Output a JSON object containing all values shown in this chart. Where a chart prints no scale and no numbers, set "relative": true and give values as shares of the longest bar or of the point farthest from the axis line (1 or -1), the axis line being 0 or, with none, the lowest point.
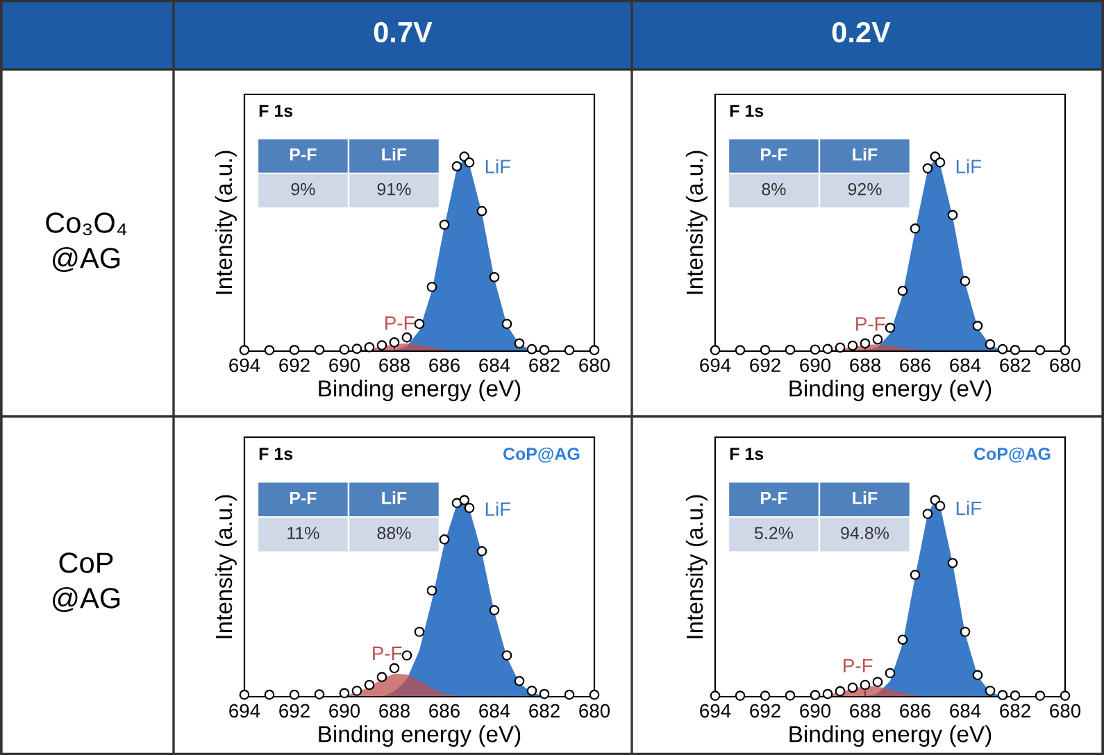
{
  "chart_data": [
    {
      "type": "area",
      "relative": true,
      "xlabel": "Binding energy (eV)",
      "ylabel": "Intensity (a.u.)",
      "xlim": [
        694,
        680
      ],
      "xticks": [
        694,
        692,
        690,
        688,
        686,
        684,
        682,
        680
      ],
      "tick_labels": "x",
      "grid": false,
      "annotations": [
        "F 1s",
        "P-F",
        "LiF",
        "9%",
        "91%"
      ],
      "x": [
        694,
        693,
        692,
        691,
        690,
        689.5,
        689,
        688.5,
        688,
        687.5,
        687,
        686.5,
        686,
        685.5,
        685.2,
        685,
        684.5,
        684,
        683.5,
        683,
        682.5,
        682,
        681,
        680
      ],
      "series": [
        {
          "type": "area",
          "name": "P-F",
          "color": "#c0504d",
          "values": [
            0,
            0,
            0,
            0,
            0.001,
            0.004,
            0.012,
            0.024,
            0.036,
            0.04,
            0.032,
            0.019,
            0.008,
            0.003,
            0.001,
            0,
            0,
            0,
            0,
            0,
            0,
            0,
            0,
            0
          ]
        },
        {
          "type": "area",
          "name": "LiF",
          "color": "#3b7ac6",
          "values": [
            0,
            0,
            0,
            0,
            0,
            0,
            0,
            0,
            0.004,
            0.026,
            0.106,
            0.31,
            0.64,
            0.94,
            0.99,
            0.96,
            0.71,
            0.37,
            0.135,
            0.035,
            0.005,
            0,
            0,
            0
          ]
        },
        {
          "type": "scatter",
          "color": "#000000",
          "marker": "circle",
          "values": [
            0.005,
            0.005,
            0.006,
            0.007,
            0.008,
            0.012,
            0.02,
            0.03,
            0.045,
            0.07,
            0.14,
            0.33,
            0.65,
            0.95,
            1,
            0.97,
            0.72,
            0.38,
            0.14,
            0.04,
            0.01,
            0.006,
            0.005,
            0.005
          ]
        }
      ]
    },
    {
      "type": "area",
      "relative": true,
      "xlabel": "Binding energy (eV)",
      "ylabel": "Intensity (a.u.)",
      "xlim": [
        694,
        680
      ],
      "xticks": [
        694,
        692,
        690,
        688,
        686,
        684,
        682,
        680
      ],
      "tick_labels": "x",
      "grid": false,
      "annotations": [
        "F 1s",
        "P-F",
        "LiF",
        "8%",
        "92%"
      ],
      "x": [
        694,
        693,
        692,
        691,
        690,
        689.5,
        689,
        688.5,
        688,
        687.5,
        687,
        686.5,
        686,
        685.5,
        685.2,
        685,
        684.5,
        684,
        683.5,
        683,
        682.5,
        682,
        681,
        680
      ],
      "series": [
        {
          "type": "area",
          "name": "P-F",
          "color": "#c0504d",
          "values": [
            0,
            0,
            0,
            0,
            0.001,
            0.004,
            0.011,
            0.021,
            0.032,
            0.035,
            0.028,
            0.017,
            0.007,
            0.003,
            0.001,
            0,
            0,
            0,
            0,
            0,
            0,
            0,
            0,
            0
          ]
        },
        {
          "type": "area",
          "name": "LiF",
          "color": "#3b7ac6",
          "values": [
            0,
            0,
            0,
            0,
            0,
            0,
            0,
            0,
            0.003,
            0.02,
            0.09,
            0.29,
            0.62,
            0.93,
            0.99,
            0.96,
            0.69,
            0.35,
            0.12,
            0.03,
            0.004,
            0,
            0,
            0
          ]
        },
        {
          "type": "scatter",
          "color": "#000000",
          "marker": "circle",
          "values": [
            0.005,
            0.005,
            0.006,
            0.007,
            0.008,
            0.011,
            0.018,
            0.028,
            0.04,
            0.06,
            0.12,
            0.31,
            0.63,
            0.94,
            1,
            0.97,
            0.7,
            0.36,
            0.13,
            0.035,
            0.01,
            0.006,
            0.005,
            0.005
          ]
        }
      ]
    },
    {
      "type": "area",
      "relative": true,
      "xlabel": "Binding energy (eV)",
      "ylabel": "Intensity (a.u.)",
      "xlim": [
        694,
        680
      ],
      "xticks": [
        694,
        692,
        690,
        688,
        686,
        684,
        682,
        680
      ],
      "tick_labels": "x",
      "grid": false,
      "annotations": [
        "F 1s",
        "P-F",
        "LiF",
        "11%",
        "88%",
        "CoP@AG"
      ],
      "x": [
        694,
        693,
        692,
        691,
        690,
        689.5,
        689,
        688.5,
        688,
        687.5,
        687,
        686.5,
        686,
        685.5,
        685.2,
        685,
        684.5,
        684,
        683.5,
        683,
        682.5,
        682,
        681,
        680
      ],
      "series": [
        {
          "type": "area",
          "name": "P-F",
          "color": "#c0504d",
          "values": [
            0,
            0,
            0,
            0,
            0.006,
            0.02,
            0.05,
            0.089,
            0.117,
            0.113,
            0.081,
            0.042,
            0.016,
            0.005,
            0.002,
            0.001,
            0,
            0,
            0,
            0,
            0,
            0,
            0,
            0
          ]
        },
        {
          "type": "area",
          "name": "LiF",
          "color": "#3b7ac6",
          "values": [
            0,
            0,
            0,
            0,
            0,
            0,
            0,
            0,
            0.026,
            0.089,
            0.236,
            0.49,
            0.78,
            0.98,
            0.995,
            0.956,
            0.73,
            0.43,
            0.2,
            0.07,
            0.02,
            0.004,
            0,
            0
          ]
        },
        {
          "type": "scatter",
          "color": "#000000",
          "marker": "circle",
          "values": [
            0.01,
            0.01,
            0.01,
            0.012,
            0.018,
            0.03,
            0.06,
            0.1,
            0.145,
            0.21,
            0.33,
            0.54,
            0.8,
            0.985,
            1,
            0.96,
            0.74,
            0.44,
            0.21,
            0.08,
            0.03,
            0.014,
            0.01,
            0.01
          ]
        }
      ]
    },
    {
      "type": "area",
      "relative": true,
      "xlabel": "Binding energy (eV)",
      "ylabel": "Intensity (a.u.)",
      "xlim": [
        694,
        680
      ],
      "xticks": [
        694,
        692,
        690,
        688,
        686,
        684,
        682,
        680
      ],
      "tick_labels": "x",
      "grid": false,
      "annotations": [
        "F 1s",
        "P-F",
        "LiF",
        "5.2%",
        "94.8%",
        "CoP@AG"
      ],
      "x": [
        694,
        693,
        692,
        691,
        690,
        689.5,
        689,
        688.5,
        688,
        687.5,
        687,
        686.5,
        686,
        685.5,
        685.2,
        685,
        684.5,
        684,
        683.5,
        683,
        682.5,
        682,
        681,
        680
      ],
      "series": [
        {
          "type": "area",
          "name": "P-F",
          "color": "#c0504d",
          "values": [
            0,
            0,
            0,
            0,
            0.003,
            0.009,
            0.023,
            0.041,
            0.054,
            0.052,
            0.037,
            0.019,
            0.007,
            0.002,
            0,
            0,
            0,
            0,
            0,
            0,
            0,
            0,
            0,
            0
          ]
        },
        {
          "type": "area",
          "name": "LiF",
          "color": "#3b7ac6",
          "values": [
            0,
            0,
            0,
            0,
            0,
            0,
            0,
            0,
            0.002,
            0.016,
            0.08,
            0.27,
            0.61,
            0.93,
            1,
            0.97,
            0.68,
            0.32,
            0.105,
            0.023,
            0.003,
            0,
            0,
            0
          ]
        },
        {
          "type": "scatter",
          "color": "#000000",
          "marker": "circle",
          "values": [
            0.005,
            0.005,
            0.005,
            0.006,
            0.008,
            0.014,
            0.028,
            0.046,
            0.06,
            0.075,
            0.12,
            0.29,
            0.62,
            0.93,
            1,
            0.97,
            0.68,
            0.33,
            0.11,
            0.03,
            0.008,
            0.006,
            0.005,
            0.005
          ]
        }
      ]
    },
    {
      "type": "other",
      "annotations": [
        "0.7V",
        "0.2V",
        "Co₃O₄\n@AG",
        "CoP\n@AG"
      ]
    }
  ]
}
